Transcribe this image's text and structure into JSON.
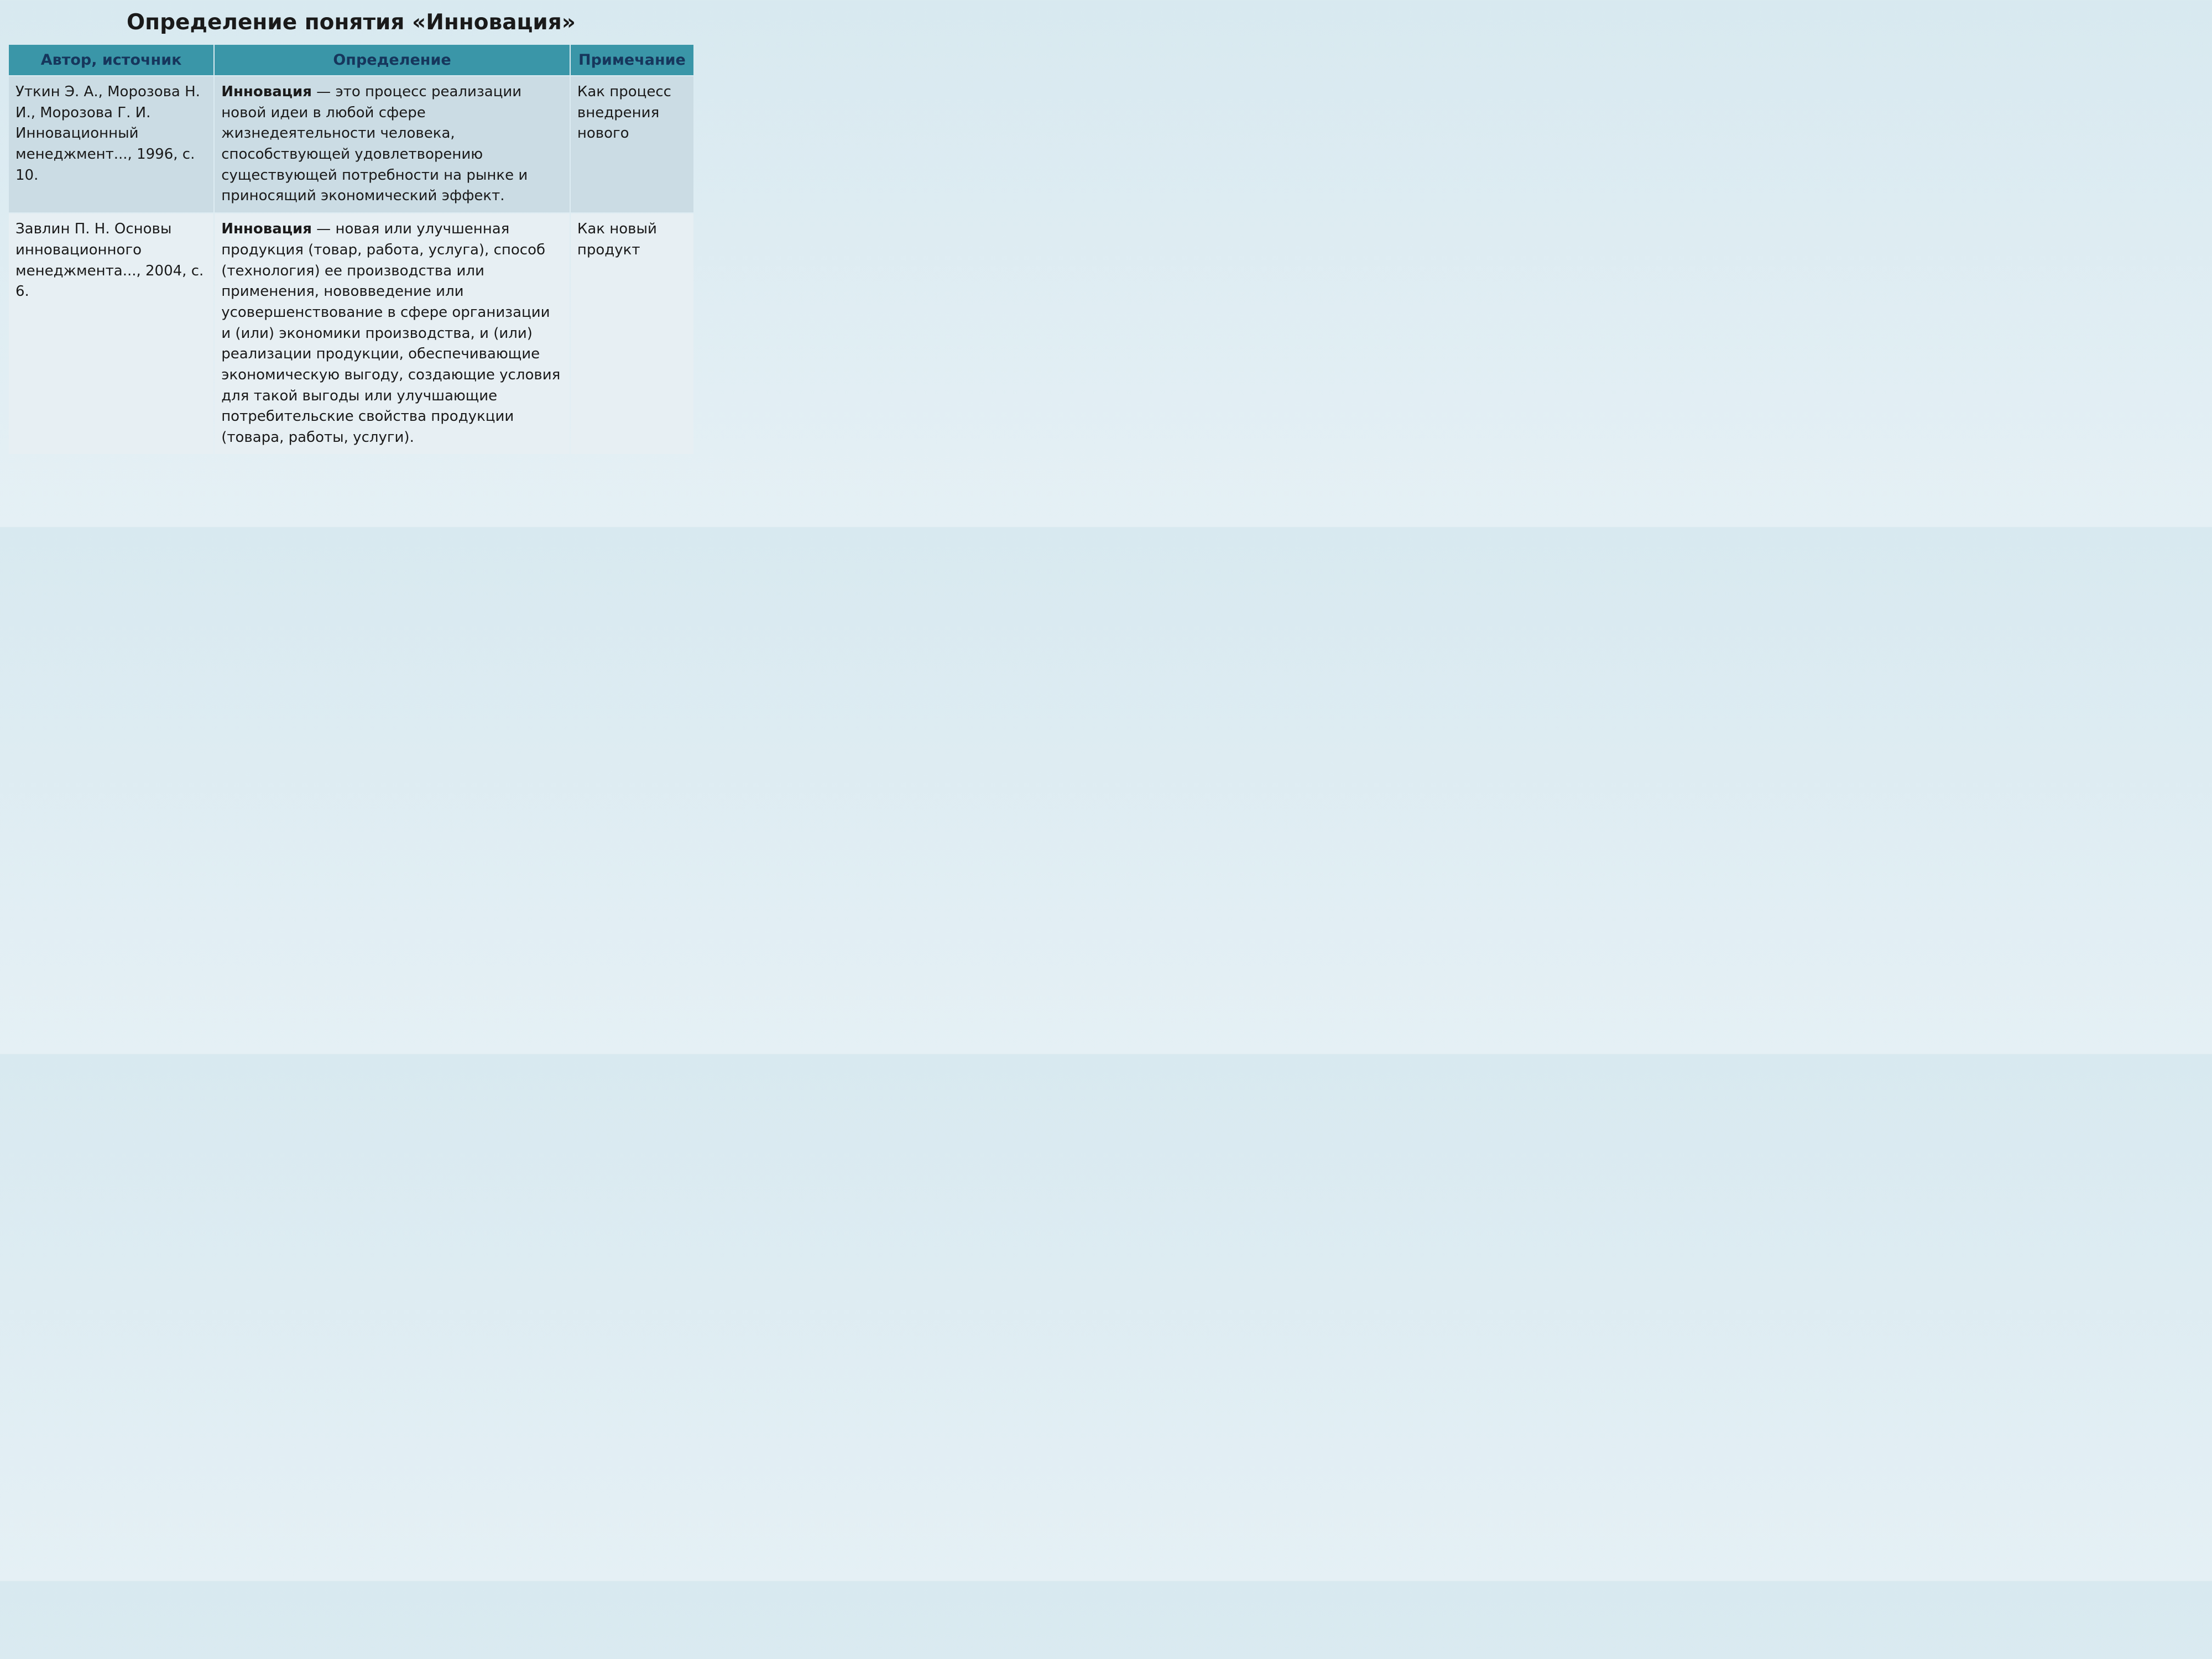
{
  "title": "Определение понятия «Инновация»",
  "table": {
    "columns": [
      "Автор, источник",
      "Определение",
      "Примечание"
    ],
    "column_widths": [
      "30%",
      "52%",
      "18%"
    ],
    "header_bg_color": "#3a96a8",
    "header_text_color": "#16365c",
    "header_fontsize": 27,
    "cell_fontsize": 26,
    "row_odd_bg": "#cbdce4",
    "row_even_bg": "#e7eff3",
    "rows": [
      {
        "author": "Уткин Э. А., Морозова Н. И., Морозова Г. И. Инновационный менеджмент..., 1996, с. 10.",
        "definition_bold": "Инновация",
        "definition_rest": " — это процесс реализации новой идеи в любой сфере жизнедеятельности человека, способствующей удовлетворению существующей потребности на рынке и приносящий экономический эффект.",
        "note": "Как процесс внедрения нового"
      },
      {
        "author": "Завлин П. Н. Основы инновационного менеджмента..., 2004, с. 6.",
        "definition_bold": "Инновация",
        "definition_rest": " — новая или улучшенная продукция (товар, работа, услуга), способ (технология) ее производства или применения, нововведение или усовершенствование в сфере организации и (или) экономики производства, и (или) реализации продукции, обеспечивающие экономическую выгоду, создающие условия для такой выгоды или улучшающие потребительские свойства продукции (товара, работы, услуги).",
        "note": "Как новый продукт"
      }
    ]
  },
  "style": {
    "title_fontsize": 39,
    "title_color": "#1a1a1a",
    "background_gradient_top": "#d8e9f0",
    "background_gradient_bottom": "#e5f0f5",
    "font_family": "DejaVu Sans"
  }
}
